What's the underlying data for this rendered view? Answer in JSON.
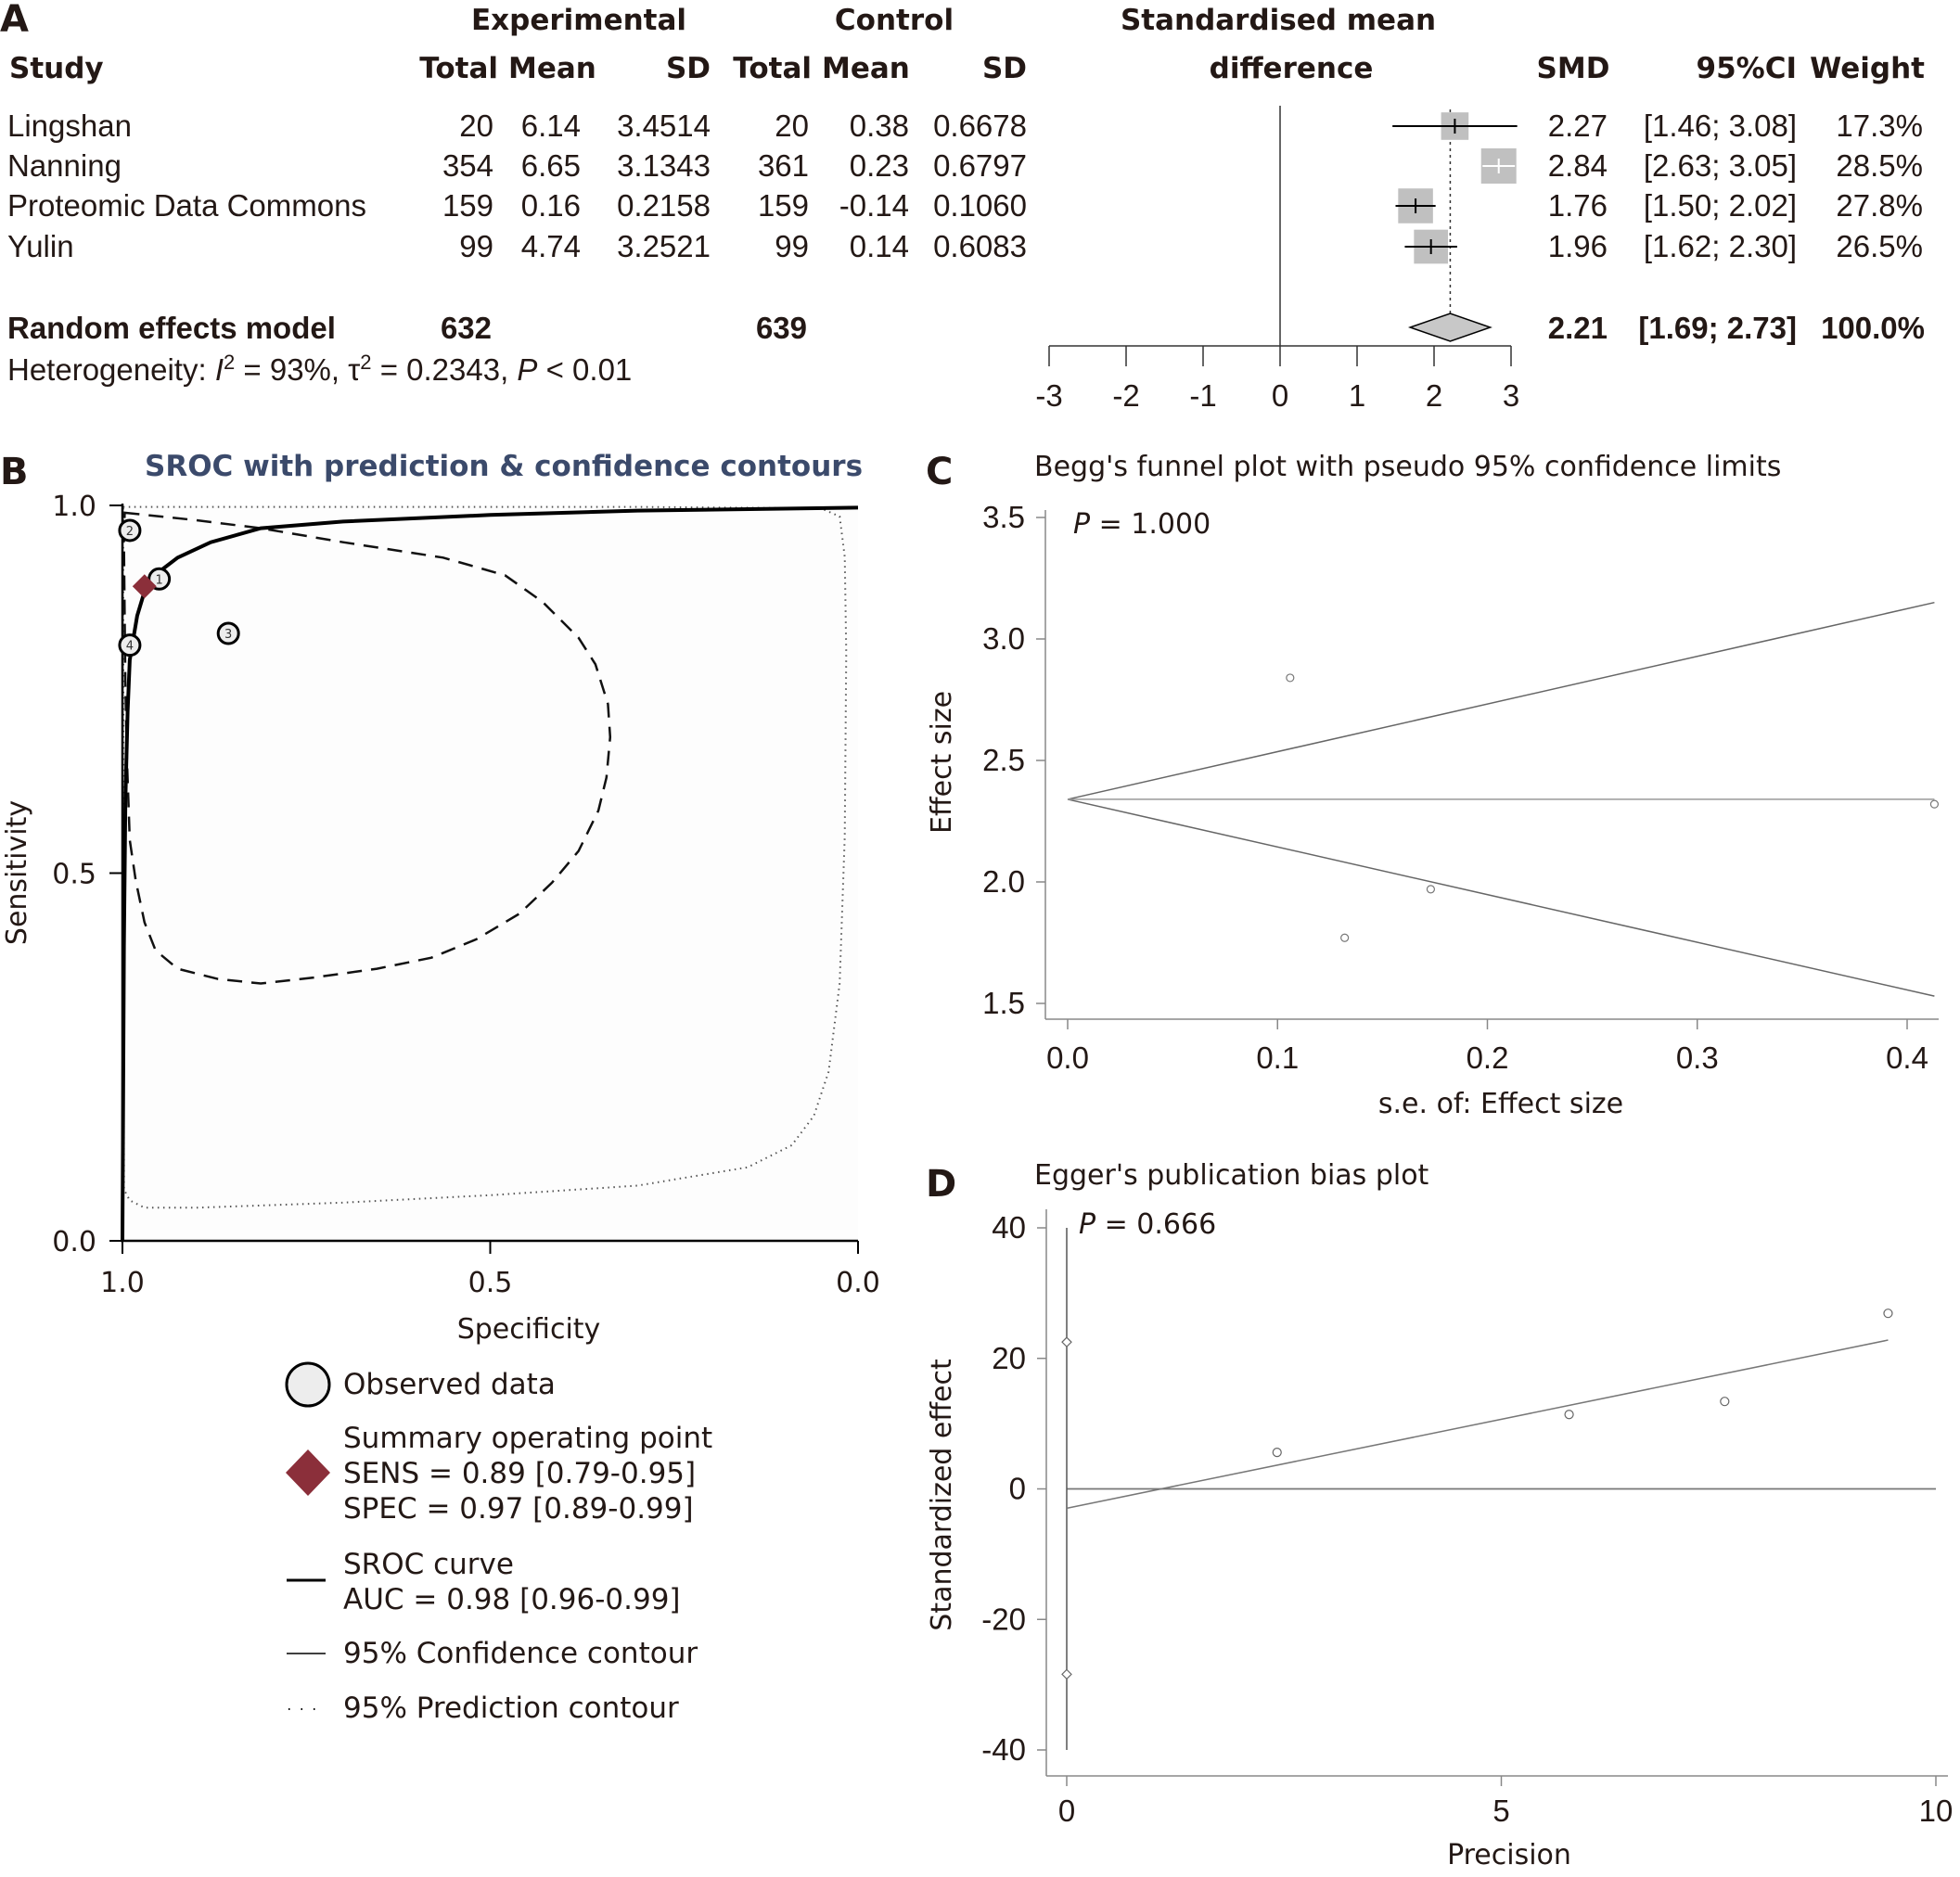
{
  "panels": {
    "A": "A",
    "B": "B",
    "C": "C",
    "D": "D"
  },
  "colors": {
    "text": "#231815",
    "forest_square": "#c0c0c0",
    "forest_diamond": "#c8c8c8",
    "sroc_title": "#3b4a6b",
    "summary_point": "#8b2f3a",
    "observed_fill": "#ededed",
    "funnel_line": "#8a8a8a"
  },
  "chart_data": [
    {
      "id": "forest",
      "type": "table",
      "subtype": "forest-plot",
      "title": "Standardised mean difference",
      "group_headers": {
        "experimental": "Experimental",
        "control": "Control",
        "effect_line1": "Standardised mean",
        "effect_line2": "difference"
      },
      "columns": {
        "study": "Study",
        "e_total": "Total",
        "e_mean": "Mean",
        "e_sd": "SD",
        "c_total": "Total",
        "c_mean": "Mean",
        "c_sd": "SD",
        "smd": "SMD",
        "ci": "95%CI",
        "weight": "Weight"
      },
      "rows": [
        {
          "study": "Lingshan",
          "e_total": "20",
          "e_mean": "6.14",
          "e_sd": "3.4514",
          "c_total": "20",
          "c_mean": "0.38",
          "c_sd": "0.6678",
          "smd": 2.27,
          "lower": 1.46,
          "upper": 3.08,
          "smd_text": "2.27",
          "ci_text": "[1.46; 3.08]",
          "weight": 17.3,
          "weight_text": "17.3%"
        },
        {
          "study": "Nanning",
          "e_total": "354",
          "e_mean": "6.65",
          "e_sd": "3.1343",
          "c_total": "361",
          "c_mean": "0.23",
          "c_sd": "0.6797",
          "smd": 2.84,
          "lower": 2.63,
          "upper": 3.05,
          "smd_text": "2.84",
          "ci_text": "[2.63; 3.05]",
          "weight": 28.5,
          "weight_text": "28.5%"
        },
        {
          "study": "Proteomic Data Commons",
          "e_total": "159",
          "e_mean": "0.16",
          "e_sd": "0.2158",
          "c_total": "159",
          "c_mean": "-0.14",
          "c_sd": "0.1060",
          "smd": 1.76,
          "lower": 1.5,
          "upper": 2.02,
          "smd_text": "1.76",
          "ci_text": "[1.50; 2.02]",
          "weight": 27.8,
          "weight_text": "27.8%"
        },
        {
          "study": "Yulin",
          "e_total": "99",
          "e_mean": "4.74",
          "e_sd": "3.2521",
          "c_total": "99",
          "c_mean": "0.14",
          "c_sd": "0.6083",
          "smd": 1.96,
          "lower": 1.62,
          "upper": 2.3,
          "smd_text": "1.96",
          "ci_text": "[1.62; 2.30]",
          "weight": 26.5,
          "weight_text": "26.5%"
        }
      ],
      "summary": {
        "label": "Random effects model",
        "e_total": "632",
        "c_total": "639",
        "smd": 2.21,
        "lower": 1.69,
        "upper": 2.73,
        "smd_text": "2.21",
        "ci_text": "[1.69; 2.73]",
        "weight_text": "100.0%"
      },
      "heterogeneity": {
        "prefix": "Heterogeneity: ",
        "i2_sym": "I",
        "i2_val": " = 93%, ",
        "tau_sym": "τ",
        "tau_val": " = 0.2343, ",
        "p_sym": "P",
        "p_val": " < 0.01",
        "sup": "2"
      },
      "xlim": [
        -3,
        3
      ],
      "xticks": [
        "-3",
        "-2",
        "-1",
        "0",
        "1",
        "2",
        "3"
      ]
    },
    {
      "id": "sroc",
      "type": "line",
      "subtype": "SROC",
      "title": "SROC with prediction & confidence contours",
      "xlabel": "Specificity",
      "ylabel": "Sensitivity",
      "xlim": [
        1.0,
        0.0
      ],
      "ylim": [
        0.0,
        1.0
      ],
      "xticks": [
        "1.0",
        "0.5",
        "0.0"
      ],
      "yticks": [
        "0.0",
        "0.5",
        "1.0"
      ],
      "observed": [
        {
          "label": "1",
          "spec": 0.95,
          "sens": 0.9
        },
        {
          "label": "2",
          "spec": 0.99,
          "sens": 0.966
        },
        {
          "label": "3",
          "spec": 0.856,
          "sens": 0.826
        },
        {
          "label": "4",
          "spec": 0.99,
          "sens": 0.81
        }
      ],
      "summary_point": {
        "spec": 0.97,
        "sens": 0.89
      },
      "sroc_curve": [
        [
          1.0,
          0.0
        ],
        [
          0.998,
          0.4
        ],
        [
          0.996,
          0.6
        ],
        [
          0.993,
          0.72
        ],
        [
          0.99,
          0.79
        ],
        [
          0.98,
          0.85
        ],
        [
          0.97,
          0.883
        ],
        [
          0.95,
          0.91
        ],
        [
          0.925,
          0.929
        ],
        [
          0.88,
          0.95
        ],
        [
          0.812,
          0.969
        ],
        [
          0.7,
          0.978
        ],
        [
          0.5,
          0.987
        ],
        [
          0.3,
          0.993
        ],
        [
          0.0,
          0.997
        ]
      ],
      "confidence_contour": [
        [
          0.997,
          0.99
        ],
        [
          0.9,
          0.98
        ],
        [
          0.812,
          0.969
        ],
        [
          0.7,
          0.95
        ],
        [
          0.564,
          0.929
        ],
        [
          0.48,
          0.905
        ],
        [
          0.429,
          0.869
        ],
        [
          0.38,
          0.82
        ],
        [
          0.357,
          0.784
        ],
        [
          0.34,
          0.73
        ],
        [
          0.337,
          0.685
        ],
        [
          0.342,
          0.63
        ],
        [
          0.353,
          0.585
        ],
        [
          0.38,
          0.53
        ],
        [
          0.416,
          0.487
        ],
        [
          0.46,
          0.445
        ],
        [
          0.519,
          0.41
        ],
        [
          0.58,
          0.385
        ],
        [
          0.654,
          0.37
        ],
        [
          0.74,
          0.358
        ],
        [
          0.812,
          0.35
        ],
        [
          0.87,
          0.356
        ],
        [
          0.925,
          0.37
        ],
        [
          0.955,
          0.395
        ],
        [
          0.97,
          0.433
        ],
        [
          0.982,
          0.49
        ],
        [
          0.99,
          0.545
        ],
        [
          0.994,
          0.657
        ],
        [
          0.996,
          0.75
        ],
        [
          0.997,
          0.85
        ],
        [
          0.998,
          0.95
        ],
        [
          0.997,
          0.99
        ]
      ],
      "prediction_contour": [
        [
          0.999,
          0.998
        ],
        [
          0.7,
          0.998
        ],
        [
          0.3,
          0.998
        ],
        [
          0.05,
          0.996
        ],
        [
          0.025,
          0.985
        ],
        [
          0.018,
          0.93
        ],
        [
          0.016,
          0.8
        ],
        [
          0.018,
          0.55
        ],
        [
          0.025,
          0.35
        ],
        [
          0.04,
          0.23
        ],
        [
          0.06,
          0.17
        ],
        [
          0.09,
          0.13
        ],
        [
          0.15,
          0.1
        ],
        [
          0.3,
          0.075
        ],
        [
          0.5,
          0.062
        ],
        [
          0.7,
          0.052
        ],
        [
          0.9,
          0.045
        ],
        [
          0.97,
          0.045
        ],
        [
          0.99,
          0.055
        ],
        [
          0.998,
          0.07
        ]
      ],
      "legend": {
        "observed": "Observed data",
        "summary_l1": "Summary operating point",
        "summary_l2": "SENS = 0.89 [0.79-0.95]",
        "summary_l3": "SPEC = 0.97 [0.89-0.99]",
        "curve_l1": "SROC curve",
        "curve_l2": "AUC = 0.98 [0.96-0.99]",
        "confidence": "95% Confidence contour",
        "prediction": "95% Prediction contour",
        "placement": "below"
      }
    },
    {
      "id": "begg",
      "type": "scatter",
      "subtype": "funnel",
      "title": "Begg's funnel plot with pseudo 95% confidence limits",
      "annotation": {
        "p_sym": "P",
        "p_val": " = 1.000"
      },
      "xlabel": "s.e. of: Effect size",
      "ylabel": "Effect size",
      "xlim": [
        0.0,
        0.4
      ],
      "ylim": [
        1.5,
        3.5
      ],
      "xticks": [
        "0.0",
        "0.1",
        "0.2",
        "0.3",
        "0.4"
      ],
      "yticks": [
        "1.5",
        "2.0",
        "2.5",
        "3.0",
        "3.5"
      ],
      "points": [
        {
          "x": 0.106,
          "y": 2.84
        },
        {
          "x": 0.132,
          "y": 1.77
        },
        {
          "x": 0.173,
          "y": 1.97
        },
        {
          "x": 0.413,
          "y": 2.32
        }
      ],
      "pooled_effect": 2.34,
      "funnel_se_max": 0.413,
      "funnel_upper_at_max": 3.15,
      "funnel_lower_at_max": 1.53
    },
    {
      "id": "egger",
      "type": "scatter",
      "subtype": "egger",
      "title": "Egger's publication bias plot",
      "annotation": {
        "p_sym": "P",
        "p_val": " = 0.666"
      },
      "xlabel": "Precision",
      "ylabel": "Standardized effect",
      "xlim": [
        0,
        10
      ],
      "ylim": [
        -40,
        40
      ],
      "xticks": [
        "0",
        "5",
        "10"
      ],
      "yticks": [
        "-40",
        "-20",
        "0",
        "20",
        "40"
      ],
      "points": [
        {
          "x": 2.42,
          "y": 5.6
        },
        {
          "x": 5.78,
          "y": 11.4
        },
        {
          "x": 7.57,
          "y": 13.4
        },
        {
          "x": 9.45,
          "y": 26.9
        }
      ],
      "regression": {
        "x0": 0,
        "y0": -2.96,
        "x1": 9.45,
        "y1": 22.8
      },
      "intercept_ci": {
        "lower": -28.4,
        "upper": 22.5,
        "line_from": -40,
        "line_to": 40
      }
    }
  ]
}
